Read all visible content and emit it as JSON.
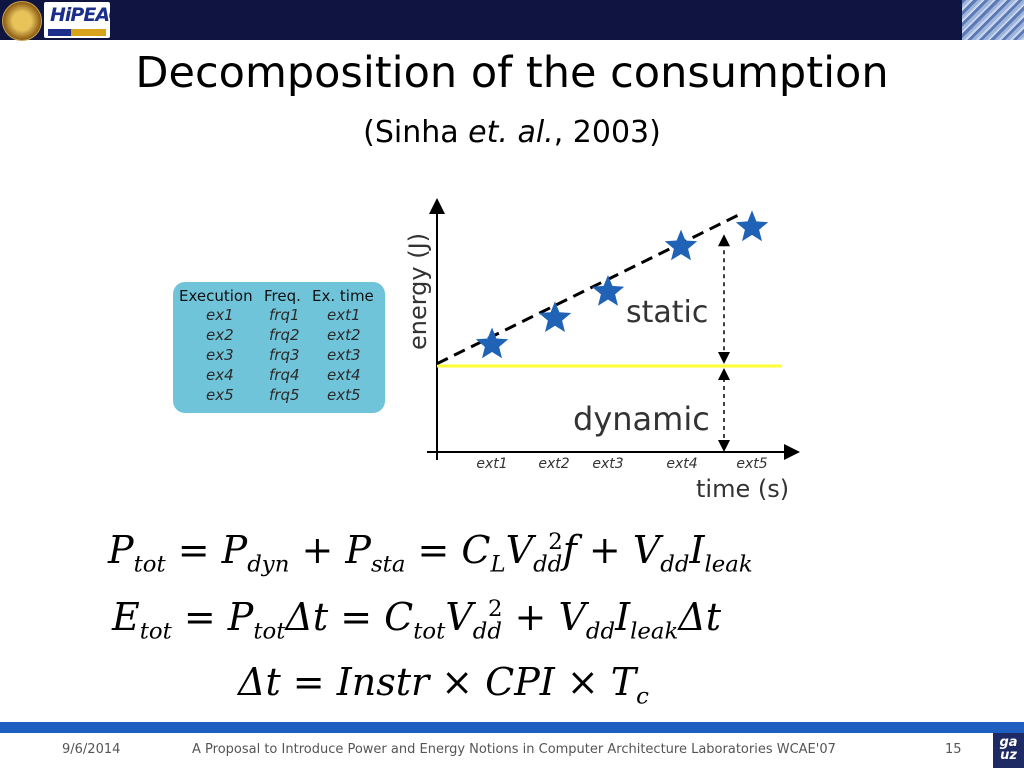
{
  "slide": {
    "title": "Decomposition of the consumption",
    "subtitle_pre": "(Sinha ",
    "subtitle_em": "et. al.",
    "subtitle_post": ", 2003)"
  },
  "logos": {
    "hipeac_text": "HiPEAC",
    "corner_logo_text": "ga uz"
  },
  "table": {
    "headers": [
      "Execution",
      "Freq.",
      "Ex. time"
    ],
    "rows": [
      [
        "ex1",
        "frq1",
        "ext1"
      ],
      [
        "ex2",
        "frq2",
        "ext2"
      ],
      [
        "ex3",
        "frq3",
        "ext3"
      ],
      [
        "ex4",
        "frq4",
        "ext4"
      ],
      [
        "ex5",
        "frq5",
        "ext5"
      ]
    ]
  },
  "chart_data": {
    "type": "scatter",
    "xlabel": "time (s)",
    "ylabel": "energy (J)",
    "x_tick_labels": [
      "ext1",
      "ext2",
      "ext3",
      "ext4",
      "ext5"
    ],
    "points": [
      {
        "x": 1,
        "y": 1.4
      },
      {
        "x": 2,
        "y": 2.5
      },
      {
        "x": 3,
        "y": 3.6
      },
      {
        "x": 4,
        "y": 5.5
      },
      {
        "x": 5,
        "y": 6.3
      }
    ],
    "static_baseline": 0.5,
    "trend_line": [
      {
        "x": 0,
        "y": 0.6
      },
      {
        "x": 5.3,
        "y": 6.9
      }
    ],
    "ylim": [
      -1.6,
      8.3
    ],
    "xlim": [
      0,
      6.3
    ],
    "annotations": [
      {
        "text": "static",
        "x": 3.45,
        "y": 4.9
      },
      {
        "text": "dynamic",
        "x": 3.35,
        "y": -0.6
      }
    ],
    "colors": {
      "points": "#1f62b6",
      "baseline": "#ffff33",
      "axis": "#000000",
      "trend": "#000000"
    }
  },
  "formulas": {
    "line1": [
      "P",
      "tot",
      " = P",
      "dyn",
      " + P",
      "sta",
      " = C",
      "L",
      "V",
      "dd",
      "2",
      "f + V",
      "dd",
      "I",
      "leak"
    ],
    "line2": [
      "E",
      "tot",
      " = P",
      "tot",
      "Δt = C",
      "tot",
      "V",
      "dd",
      "2",
      " + V",
      "dd",
      "I",
      "leak",
      "Δt"
    ],
    "line3": [
      "Δt = ",
      "Instr",
      " × ",
      "CPI",
      " × T",
      "c"
    ]
  },
  "footer": {
    "date": "9/6/2014",
    "caption": "A Proposal to Introduce Power and Energy Notions in Computer Architecture Laboratories WCAE'07",
    "page": "15"
  }
}
